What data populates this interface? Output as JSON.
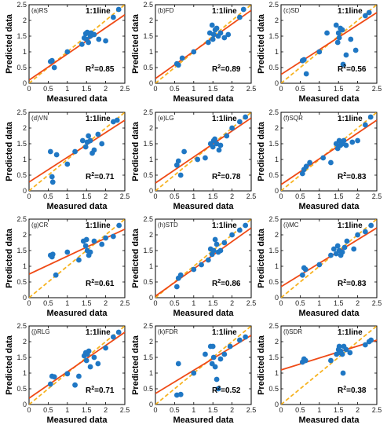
{
  "legend_text": "1:1line",
  "colors": {
    "points": "#1f77c4",
    "fit_line": "#ef4a16",
    "identity_line": "#f7b321",
    "axes": "#000000"
  },
  "chart_data": [
    {
      "type": "scatter",
      "panel_label": "(a)RS",
      "xlabel": "Measured data",
      "ylabel": "Predicted data",
      "xlim": [
        0,
        2.5
      ],
      "ylim": [
        0,
        2.5
      ],
      "xticks": [
        "0",
        "0.5",
        "1",
        "1.5",
        "2",
        "2.5"
      ],
      "yticks": [
        "0",
        "0.5",
        "1",
        "1.5",
        "2",
        "2.5"
      ],
      "r2_text": "0.85",
      "fit_line": [
        [
          0,
          0.1
        ],
        [
          2.5,
          2.18
        ]
      ],
      "points": [
        [
          0.56,
          0.69
        ],
        [
          0.6,
          0.72
        ],
        [
          0.66,
          0.5
        ],
        [
          1.0,
          1.0
        ],
        [
          1.38,
          1.24
        ],
        [
          1.44,
          1.44
        ],
        [
          1.48,
          1.58
        ],
        [
          1.5,
          1.4
        ],
        [
          1.52,
          1.62
        ],
        [
          1.55,
          1.3
        ],
        [
          1.6,
          1.5
        ],
        [
          1.62,
          1.6
        ],
        [
          1.7,
          1.55
        ],
        [
          1.82,
          1.4
        ],
        [
          2.0,
          1.35
        ],
        [
          2.2,
          2.1
        ],
        [
          2.34,
          2.35
        ]
      ]
    },
    {
      "type": "scatter",
      "panel_label": "(b)FD",
      "xlabel": "Measured data",
      "ylabel": "Predicted data",
      "xlim": [
        0,
        2.5
      ],
      "ylim": [
        0,
        2.5
      ],
      "xticks": [
        "0",
        "0.5",
        "1",
        "1.5",
        "2",
        "2.5"
      ],
      "yticks": [
        "0",
        "0.5",
        "1",
        "1.5",
        "2",
        "2.5"
      ],
      "r2_text": "0.89",
      "fit_line": [
        [
          0,
          0.15
        ],
        [
          2.5,
          2.32
        ]
      ],
      "points": [
        [
          0.56,
          0.62
        ],
        [
          0.6,
          0.58
        ],
        [
          0.7,
          0.8
        ],
        [
          1.0,
          1.0
        ],
        [
          1.38,
          1.3
        ],
        [
          1.42,
          1.6
        ],
        [
          1.48,
          1.85
        ],
        [
          1.5,
          1.4
        ],
        [
          1.52,
          1.55
        ],
        [
          1.56,
          1.7
        ],
        [
          1.6,
          1.75
        ],
        [
          1.64,
          1.5
        ],
        [
          1.7,
          1.6
        ],
        [
          1.8,
          1.45
        ],
        [
          1.9,
          1.55
        ],
        [
          2.2,
          2.1
        ],
        [
          2.3,
          2.35
        ]
      ]
    },
    {
      "type": "scatter",
      "panel_label": "(c)SD",
      "xlabel": "Measured data",
      "ylabel": "Predicted data",
      "xlim": [
        0,
        2.5
      ],
      "ylim": [
        0,
        2.5
      ],
      "xticks": [
        "0",
        "0.5",
        "1",
        "1.5",
        "2",
        "2.5"
      ],
      "yticks": [
        "0",
        "0.5",
        "1",
        "1.5",
        "2",
        "2.5"
      ],
      "r2_text": "0.56",
      "fit_line": [
        [
          0,
          0.28
        ],
        [
          2.5,
          2.25
        ]
      ],
      "points": [
        [
          0.56,
          0.72
        ],
        [
          0.6,
          0.75
        ],
        [
          0.66,
          0.3
        ],
        [
          1.0,
          1.0
        ],
        [
          1.2,
          1.6
        ],
        [
          1.44,
          1.85
        ],
        [
          1.48,
          1.3
        ],
        [
          1.5,
          1.6
        ],
        [
          1.52,
          1.45
        ],
        [
          1.55,
          1.75
        ],
        [
          1.6,
          1.7
        ],
        [
          1.62,
          0.6
        ],
        [
          1.7,
          0.9
        ],
        [
          1.82,
          1.4
        ],
        [
          1.95,
          1.05
        ],
        [
          2.2,
          2.15
        ],
        [
          2.3,
          2.25
        ]
      ]
    },
    {
      "type": "scatter",
      "panel_label": "(d)VN",
      "xlabel": "Measured data",
      "ylabel": "Predicted data",
      "xlim": [
        0,
        2.5
      ],
      "ylim": [
        0,
        2.5
      ],
      "xticks": [
        "0",
        "0.5",
        "1",
        "1.5",
        "2",
        "2.5"
      ],
      "yticks": [
        "0",
        "0.5",
        "1",
        "1.5",
        "2",
        "2.5"
      ],
      "r2_text": "0.71",
      "fit_line": [
        [
          0,
          0.28
        ],
        [
          2.5,
          2.25
        ]
      ],
      "points": [
        [
          0.56,
          1.25
        ],
        [
          0.6,
          0.45
        ],
        [
          0.62,
          0.28
        ],
        [
          0.72,
          1.15
        ],
        [
          1.0,
          0.85
        ],
        [
          1.2,
          1.25
        ],
        [
          1.4,
          1.6
        ],
        [
          1.48,
          1.4
        ],
        [
          1.52,
          1.55
        ],
        [
          1.55,
          1.75
        ],
        [
          1.6,
          1.6
        ],
        [
          1.65,
          1.2
        ],
        [
          1.7,
          1.3
        ],
        [
          1.8,
          1.8
        ],
        [
          1.9,
          1.5
        ],
        [
          2.2,
          2.2
        ],
        [
          2.3,
          2.25
        ]
      ]
    },
    {
      "type": "scatter",
      "panel_label": "(e)LG",
      "xlabel": "Measured data",
      "ylabel": "Predicted data",
      "xlim": [
        0,
        2.5
      ],
      "ylim": [
        0,
        2.5
      ],
      "xticks": [
        "0",
        "0.5",
        "1",
        "1.5",
        "2",
        "2.5"
      ],
      "yticks": [
        "0",
        "0.5",
        "1",
        "1.5",
        "2",
        "2.5"
      ],
      "r2_text": "0.78",
      "fit_line": [
        [
          0,
          0.25
        ],
        [
          2.5,
          2.32
        ]
      ],
      "points": [
        [
          0.56,
          0.82
        ],
        [
          0.6,
          0.95
        ],
        [
          0.66,
          0.5
        ],
        [
          0.75,
          1.25
        ],
        [
          1.1,
          1.0
        ],
        [
          1.3,
          1.05
        ],
        [
          1.44,
          1.5
        ],
        [
          1.5,
          1.4
        ],
        [
          1.52,
          1.6
        ],
        [
          1.55,
          1.65
        ],
        [
          1.6,
          1.5
        ],
        [
          1.66,
          1.3
        ],
        [
          1.7,
          1.45
        ],
        [
          1.86,
          1.75
        ],
        [
          2.0,
          2.0
        ],
        [
          2.2,
          2.2
        ],
        [
          2.35,
          2.35
        ]
      ]
    },
    {
      "type": "scatter",
      "panel_label": "(f)SQR",
      "xlabel": "Measured data",
      "ylabel": "Predicted data",
      "xlim": [
        0,
        2.5
      ],
      "ylim": [
        0,
        2.5
      ],
      "xticks": [
        "0",
        "0.5",
        "1",
        "1.5",
        "2",
        "2.5"
      ],
      "yticks": [
        "0",
        "0.5",
        "1",
        "1.5",
        "2",
        "2.5"
      ],
      "r2_text": "0.83",
      "fit_line": [
        [
          0,
          0.2
        ],
        [
          2.5,
          2.25
        ]
      ],
      "points": [
        [
          0.56,
          0.55
        ],
        [
          0.6,
          0.68
        ],
        [
          0.66,
          0.78
        ],
        [
          0.75,
          0.9
        ],
        [
          1.1,
          1.05
        ],
        [
          1.3,
          0.9
        ],
        [
          1.44,
          1.5
        ],
        [
          1.48,
          1.35
        ],
        [
          1.52,
          1.6
        ],
        [
          1.55,
          1.45
        ],
        [
          1.6,
          1.5
        ],
        [
          1.64,
          1.6
        ],
        [
          1.7,
          1.45
        ],
        [
          1.86,
          1.55
        ],
        [
          2.0,
          1.6
        ],
        [
          2.2,
          2.1
        ],
        [
          2.34,
          2.35
        ]
      ]
    },
    {
      "type": "scatter",
      "panel_label": "(g)CR",
      "xlabel": "Measured data",
      "ylabel": "Predicted data",
      "xlim": [
        0,
        2.5
      ],
      "ylim": [
        0,
        2.5
      ],
      "xticks": [
        "0",
        "0.5",
        "1",
        "1.5",
        "2",
        "2.5"
      ],
      "yticks": [
        "0",
        "0.5",
        "1",
        "1.5",
        "2",
        "2.5"
      ],
      "r2_text": "0.61",
      "fit_line": [
        [
          0,
          0.75
        ],
        [
          2.5,
          2.18
        ]
      ],
      "points": [
        [
          0.56,
          1.35
        ],
        [
          0.6,
          1.3
        ],
        [
          0.62,
          1.38
        ],
        [
          0.7,
          0.72
        ],
        [
          1.0,
          1.45
        ],
        [
          1.3,
          1.2
        ],
        [
          1.42,
          1.8
        ],
        [
          1.48,
          1.65
        ],
        [
          1.5,
          1.85
        ],
        [
          1.52,
          1.5
        ],
        [
          1.56,
          1.35
        ],
        [
          1.6,
          1.45
        ],
        [
          1.7,
          1.8
        ],
        [
          1.9,
          1.7
        ],
        [
          2.0,
          1.9
        ],
        [
          2.2,
          1.95
        ],
        [
          2.35,
          2.3
        ]
      ]
    },
    {
      "type": "scatter",
      "panel_label": "(h)STD",
      "xlabel": "Measured data",
      "ylabel": "Predicted data",
      "xlim": [
        0,
        2.5
      ],
      "ylim": [
        0,
        2.5
      ],
      "xticks": [
        "0",
        "0.5",
        "1",
        "1.5",
        "2",
        "2.5"
      ],
      "yticks": [
        "0",
        "0.5",
        "1",
        "1.5",
        "2",
        "2.5"
      ],
      "r2_text": "0.86",
      "fit_line": [
        [
          0,
          0.05
        ],
        [
          2.5,
          2.22
        ]
      ],
      "points": [
        [
          0.56,
          0.35
        ],
        [
          0.6,
          0.62
        ],
        [
          0.66,
          0.72
        ],
        [
          1.0,
          0.9
        ],
        [
          1.2,
          1.05
        ],
        [
          1.38,
          1.2
        ],
        [
          1.44,
          1.55
        ],
        [
          1.48,
          1.38
        ],
        [
          1.52,
          1.5
        ],
        [
          1.56,
          1.85
        ],
        [
          1.6,
          1.7
        ],
        [
          1.64,
          1.45
        ],
        [
          1.7,
          1.5
        ],
        [
          1.8,
          1.75
        ],
        [
          2.0,
          2.0
        ],
        [
          2.2,
          2.15
        ],
        [
          2.35,
          2.3
        ]
      ]
    },
    {
      "type": "scatter",
      "panel_label": "(i)MC",
      "xlabel": "Measured data",
      "ylabel": "Predicted data",
      "xlim": [
        0,
        2.5
      ],
      "ylim": [
        0,
        2.5
      ],
      "xticks": [
        "0",
        "0.5",
        "1",
        "1.5",
        "2",
        "2.5"
      ],
      "yticks": [
        "0",
        "0.5",
        "1",
        "1.5",
        "2",
        "2.5"
      ],
      "r2_text": "0.83",
      "fit_line": [
        [
          0,
          0.35
        ],
        [
          2.5,
          2.22
        ]
      ],
      "points": [
        [
          0.56,
          0.72
        ],
        [
          0.6,
          0.95
        ],
        [
          0.64,
          0.9
        ],
        [
          1.0,
          1.05
        ],
        [
          1.3,
          1.35
        ],
        [
          1.38,
          1.55
        ],
        [
          1.44,
          1.4
        ],
        [
          1.48,
          1.65
        ],
        [
          1.52,
          1.5
        ],
        [
          1.56,
          1.35
        ],
        [
          1.6,
          1.45
        ],
        [
          1.66,
          1.6
        ],
        [
          1.72,
          1.8
        ],
        [
          1.9,
          1.55
        ],
        [
          2.0,
          2.0
        ],
        [
          2.2,
          2.1
        ],
        [
          2.35,
          2.3
        ]
      ]
    },
    {
      "type": "scatter",
      "panel_label": "(j)RLG",
      "xlabel": "Measured data",
      "ylabel": "Predicted data",
      "xlim": [
        0,
        2.5
      ],
      "ylim": [
        0,
        2.5
      ],
      "xticks": [
        "0",
        "0.5",
        "1",
        "1.5",
        "2",
        "2.5"
      ],
      "yticks": [
        "0",
        "0.5",
        "1",
        "1.5",
        "2",
        "2.5"
      ],
      "r2_text": "0.71",
      "fit_line": [
        [
          0,
          0.2
        ],
        [
          2.5,
          2.3
        ]
      ],
      "points": [
        [
          0.56,
          0.65
        ],
        [
          0.6,
          0.9
        ],
        [
          0.66,
          0.88
        ],
        [
          1.0,
          0.98
        ],
        [
          1.2,
          0.62
        ],
        [
          1.3,
          0.9
        ],
        [
          1.44,
          1.55
        ],
        [
          1.48,
          1.65
        ],
        [
          1.5,
          1.4
        ],
        [
          1.52,
          1.6
        ],
        [
          1.56,
          1.7
        ],
        [
          1.6,
          1.2
        ],
        [
          1.7,
          1.5
        ],
        [
          1.8,
          1.3
        ],
        [
          2.0,
          1.8
        ],
        [
          2.2,
          2.15
        ],
        [
          2.34,
          2.3
        ]
      ]
    },
    {
      "type": "scatter",
      "panel_label": "(k)FDR",
      "xlabel": "Measured data",
      "ylabel": "Predicted data",
      "xlim": [
        0,
        2.5
      ],
      "ylim": [
        0,
        2.5
      ],
      "xticks": [
        "0",
        "0.5",
        "1",
        "1.5",
        "2",
        "2.5"
      ],
      "yticks": [
        "0",
        "0.5",
        "1",
        "1.5",
        "2",
        "2.5"
      ],
      "r2_text": "0.52",
      "fit_line": [
        [
          0,
          0.35
        ],
        [
          2.5,
          2.2
        ]
      ],
      "points": [
        [
          0.56,
          0.3
        ],
        [
          0.6,
          1.3
        ],
        [
          0.66,
          0.32
        ],
        [
          1.0,
          1.0
        ],
        [
          1.3,
          1.6
        ],
        [
          1.44,
          1.85
        ],
        [
          1.48,
          1.3
        ],
        [
          1.5,
          1.85
        ],
        [
          1.52,
          1.5
        ],
        [
          1.56,
          1.2
        ],
        [
          1.6,
          0.8
        ],
        [
          1.64,
          0.5
        ],
        [
          1.7,
          1.45
        ],
        [
          1.8,
          1.6
        ],
        [
          1.95,
          1.85
        ],
        [
          2.2,
          2.05
        ],
        [
          2.35,
          2.15
        ]
      ]
    },
    {
      "type": "scatter",
      "panel_label": "(l)SDR",
      "xlabel": "Measured data",
      "ylabel": "Predicted data",
      "xlim": [
        0,
        2.5
      ],
      "ylim": [
        0,
        2.5
      ],
      "xticks": [
        "0",
        "0.5",
        "1",
        "1.5",
        "2",
        "2.5"
      ],
      "yticks": [
        "0",
        "0.5",
        "1",
        "1.5",
        "2",
        "2.5"
      ],
      "r2_text": "0.38",
      "fit_line": [
        [
          0,
          1.1
        ],
        [
          2.5,
          2.05
        ]
      ],
      "points": [
        [
          0.56,
          1.35
        ],
        [
          0.6,
          1.45
        ],
        [
          0.64,
          1.4
        ],
        [
          1.3,
          1.4
        ],
        [
          1.45,
          1.6
        ],
        [
          1.5,
          1.75
        ],
        [
          1.52,
          1.85
        ],
        [
          1.54,
          1.65
        ],
        [
          1.56,
          1.7
        ],
        [
          1.6,
          1.6
        ],
        [
          1.62,
          1.0
        ],
        [
          1.64,
          1.85
        ],
        [
          1.7,
          1.75
        ],
        [
          1.8,
          1.65
        ],
        [
          2.2,
          1.9
        ],
        [
          2.3,
          2.0
        ],
        [
          2.35,
          2.05
        ]
      ]
    }
  ]
}
